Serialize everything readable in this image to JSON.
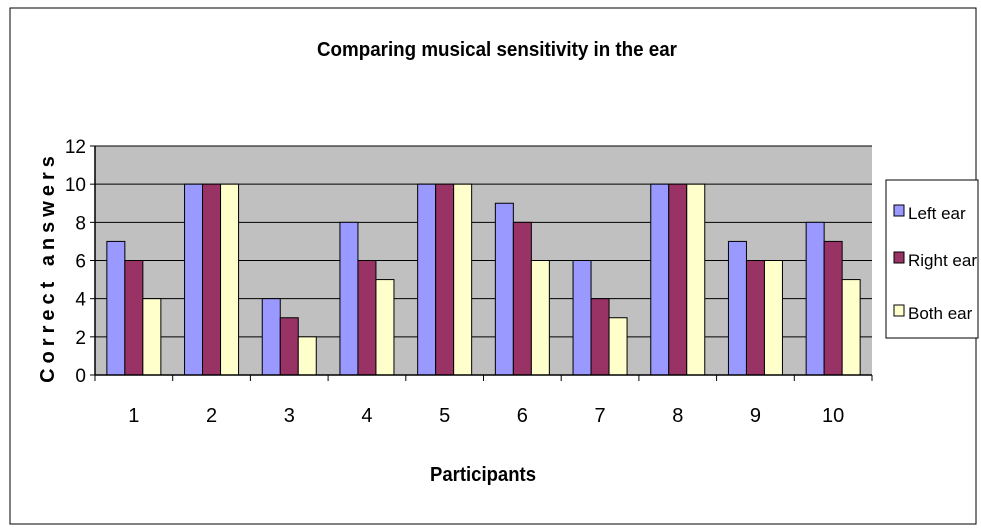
{
  "chart_data": {
    "type": "bar",
    "title": "Comparing musical sensitivity in the ear",
    "xlabel": "Participants",
    "ylabel": "Correct answers",
    "categories": [
      "1",
      "2",
      "3",
      "4",
      "5",
      "6",
      "7",
      "8",
      "9",
      "10"
    ],
    "series": [
      {
        "name": "Left ear",
        "values": [
          7,
          10,
          4,
          8,
          10,
          9,
          6,
          10,
          7,
          8
        ],
        "color": "#9999ff"
      },
      {
        "name": "Right ear",
        "values": [
          6,
          10,
          3,
          6,
          10,
          8,
          4,
          10,
          6,
          7
        ],
        "color": "#993366"
      },
      {
        "name": "Both ear",
        "values": [
          4,
          10,
          2,
          5,
          10,
          6,
          3,
          10,
          6,
          5
        ],
        "color": "#ffffcc"
      }
    ],
    "ylim": [
      0,
      12
    ],
    "yticks": [
      "0",
      "2",
      "4",
      "6",
      "8",
      "10",
      "12"
    ],
    "grid": true,
    "legend_position": "right",
    "plot_background": "#c0c0c0"
  }
}
